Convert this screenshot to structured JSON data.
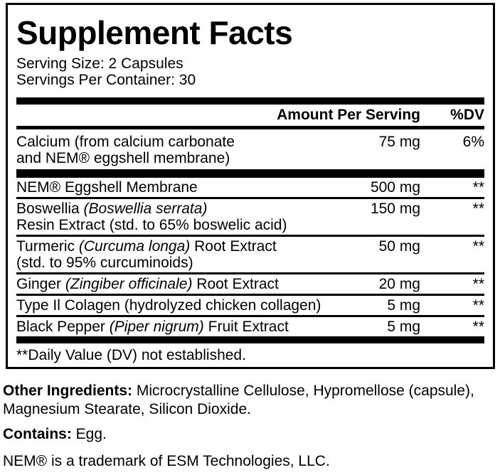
{
  "colors": {
    "ink": "#000000",
    "background": "#ffffff"
  },
  "title": "Supplement Facts",
  "serving": {
    "size": "Serving Size: 2 Capsules",
    "per_container": "Servings Per Container: 30"
  },
  "header": {
    "amount_label": "Amount Per Serving",
    "dv_label": "%DV"
  },
  "table": {
    "rows": [
      {
        "name_pre": "Calcium (from calcium carbonate",
        "name_it": "",
        "name_post": "",
        "line2": "and NEM® eggshell membrane)",
        "amount": "75 mg",
        "dv": "6%"
      },
      {
        "name_pre": "NEM® Eggshell Membrane",
        "name_it": "",
        "name_post": "",
        "line2": "",
        "amount": "500 mg",
        "dv": "**"
      },
      {
        "name_pre": "Boswellia ",
        "name_it": "(Boswellia serrata)",
        "name_post": "",
        "line2": "Resin Extract (std. to 65% boswelic acid)",
        "amount": "150 mg",
        "dv": "**"
      },
      {
        "name_pre": "Turmeric ",
        "name_it": "(Curcuma longa)",
        "name_post": " Root Extract",
        "line2": "(std. to 95% curcuminoids)",
        "amount": "50 mg",
        "dv": "**"
      },
      {
        "name_pre": "Ginger ",
        "name_it": "(Zingiber officinale)",
        "name_post": " Root Extract",
        "line2": "",
        "amount": "20 mg",
        "dv": "**"
      },
      {
        "name_pre": "Type Il Colagen (hydrolyzed chicken collagen)",
        "name_it": "",
        "name_post": "",
        "line2": "",
        "amount": "5 mg",
        "dv": "**"
      },
      {
        "name_pre": "Black Pepper ",
        "name_it": "(Piper nigrum)",
        "name_post": " Fruit Extract",
        "line2": "",
        "amount": "5 mg",
        "dv": "**"
      }
    ]
  },
  "footnote": "**Daily Value (DV) not established.",
  "footer": {
    "other_ingredients_label": "Other Ingredients:",
    "other_ingredients_text": " Microcrystalline Cellulose, Hypromellose (capsule), Magnesium Stearate, Silicon Dioxide.",
    "contains_label": "Contains:",
    "contains_text": " Egg.",
    "trademark": "NEM® is a trademark of ESM Technologies, LLC."
  }
}
